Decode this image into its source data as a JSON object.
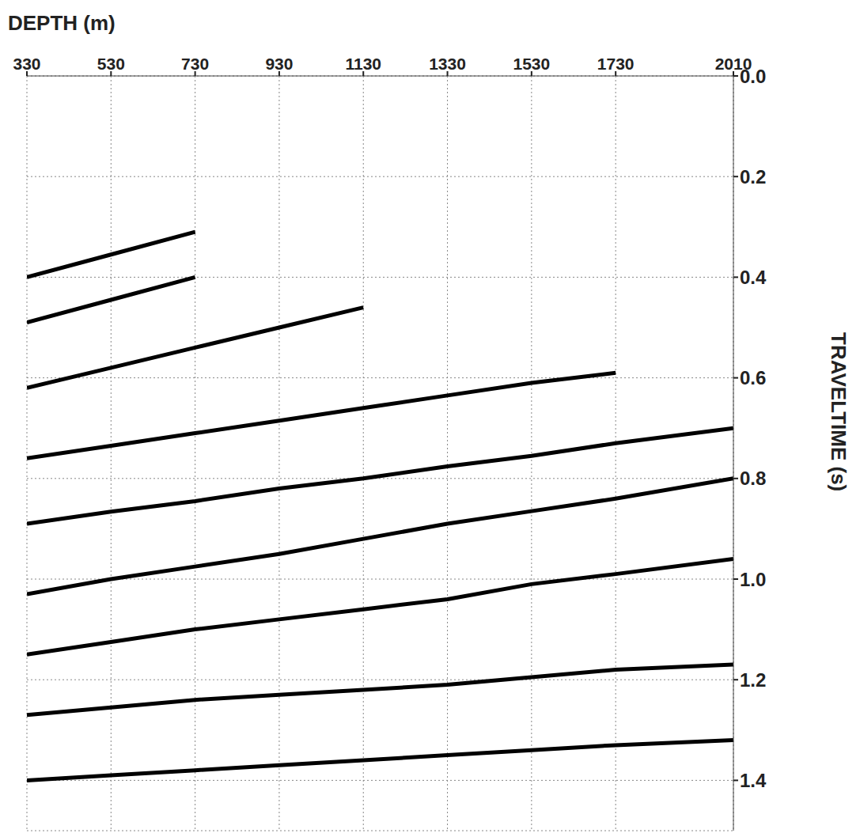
{
  "chart_data": {
    "type": "line",
    "x_label": "DEPTH (m)",
    "y_label": "TRAVELTIME (s)",
    "x": [
      330,
      530,
      730,
      930,
      1130,
      1330,
      1530,
      1730,
      2010
    ],
    "series": [
      {
        "color": "#000000",
        "values": [
          0.4,
          0.355,
          0.31,
          null,
          null,
          null,
          null,
          null,
          null
        ]
      },
      {
        "color": "#000000",
        "values": [
          0.49,
          0.445,
          0.4,
          null,
          null,
          null,
          null,
          null,
          null
        ]
      },
      {
        "color": "#000000",
        "values": [
          0.62,
          0.58,
          0.54,
          0.5,
          0.46,
          null,
          null,
          null,
          null
        ]
      },
      {
        "color": "#000000",
        "values": [
          0.76,
          0.735,
          0.71,
          0.685,
          0.66,
          0.635,
          0.61,
          0.59,
          null
        ]
      },
      {
        "color": "#000000",
        "values": [
          0.89,
          0.866,
          0.845,
          0.82,
          0.8,
          0.776,
          0.755,
          0.73,
          0.7
        ]
      },
      {
        "color": "#000000",
        "values": [
          1.03,
          1.0,
          0.975,
          0.95,
          0.92,
          0.89,
          0.865,
          0.84,
          0.8
        ]
      },
      {
        "color": "#000000",
        "values": [
          1.15,
          1.125,
          1.1,
          1.08,
          1.06,
          1.04,
          1.01,
          0.99,
          0.96
        ]
      },
      {
        "color": "#000000",
        "values": [
          1.27,
          1.255,
          1.24,
          1.23,
          1.22,
          1.21,
          1.195,
          1.18,
          1.17
        ]
      },
      {
        "color": "#000000",
        "values": [
          1.4,
          1.39,
          1.38,
          1.37,
          1.36,
          1.35,
          1.34,
          1.33,
          1.32
        ]
      }
    ],
    "xlim": [
      330,
      2010
    ],
    "xticks": [
      330,
      530,
      730,
      930,
      1130,
      1330,
      1530,
      1730,
      2010
    ],
    "ylim": [
      0,
      1.5
    ],
    "yticks": [
      {
        "value": 0,
        "label": "0.0"
      },
      {
        "value": 0.2,
        "label": "0.2"
      },
      {
        "value": 0.4,
        "label": "0.4"
      },
      {
        "value": 0.6,
        "label": "0.6"
      },
      {
        "value": 0.8,
        "label": "0.8"
      },
      {
        "value": 1.0,
        "label": "1.0"
      },
      {
        "value": 1.2,
        "label": "1.2"
      },
      {
        "value": 1.4,
        "label": "1.4"
      }
    ],
    "grid": true
  }
}
